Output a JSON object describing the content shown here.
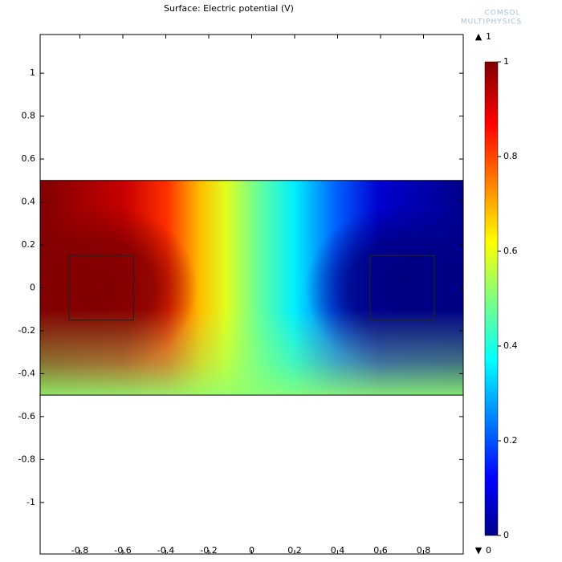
{
  "chart_data": {
    "type": "surface",
    "title": "Surface: Electric potential (V)",
    "logo": [
      "COMSOL",
      "MULTIPHYSICS"
    ],
    "xlim": [
      -0.985,
      0.985
    ],
    "ylim": [
      -1.24,
      1.18
    ],
    "xticks": [
      -0.8,
      -0.6,
      -0.4,
      -0.2,
      0,
      0.2,
      0.4,
      0.6,
      0.8
    ],
    "yticks": [
      -1,
      -0.8,
      -0.6,
      -0.4,
      -0.2,
      0,
      0.2,
      0.4,
      0.6,
      0.8,
      1
    ],
    "band_y": [
      -0.5,
      0.5
    ],
    "squares": [
      {
        "x": [
          -0.85,
          -0.55
        ],
        "y": [
          -0.15,
          0.15
        ]
      },
      {
        "x": [
          0.55,
          0.85
        ],
        "y": [
          -0.15,
          0.15
        ]
      }
    ],
    "colorbar": {
      "lim": [
        0,
        1
      ],
      "ticks": [
        0,
        0.2,
        0.4,
        0.6,
        0.8,
        1
      ],
      "max": 1,
      "min": 0
    }
  }
}
